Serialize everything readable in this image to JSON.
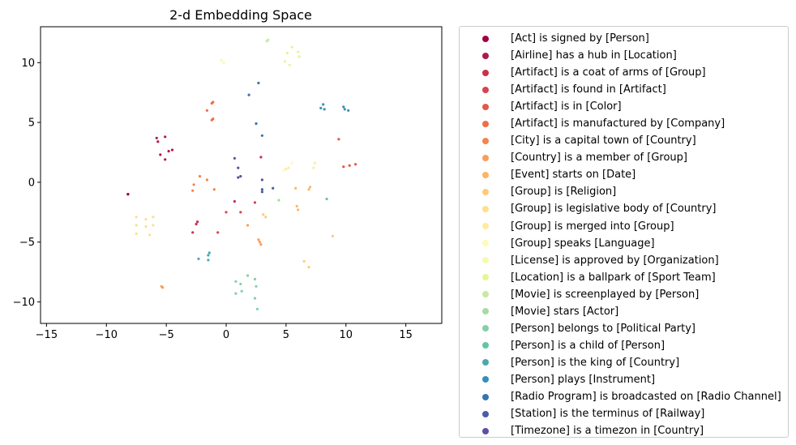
{
  "chart_data": {
    "type": "scatter",
    "title": "2-d Embedding Space",
    "xlabel": "",
    "ylabel": "",
    "xlim": [
      -15.5,
      18
    ],
    "ylim": [
      -11.8,
      13
    ],
    "xticks": [
      -15,
      -10,
      -5,
      0,
      5,
      10,
      15
    ],
    "yticks": [
      -10,
      -5,
      0,
      5,
      10
    ],
    "grid": false,
    "legend_position": "outside-right",
    "series": [
      {
        "name": "[Act] is signed by [Person]",
        "color": "#9e0142",
        "points": [
          [
            -8.2,
            -1.0
          ],
          [
            -8.2,
            -1.0
          ]
        ]
      },
      {
        "name": "[Airline] has a hub in [Location]",
        "color": "#b01a48",
        "points": [
          [
            -5.8,
            3.7
          ],
          [
            -5.7,
            3.4
          ],
          [
            -5.1,
            3.8
          ],
          [
            -4.8,
            2.6
          ],
          [
            -4.5,
            2.7
          ],
          [
            -5.5,
            2.3
          ],
          [
            -5.1,
            1.9
          ]
        ]
      },
      {
        "name": "[Artifact] is a coat of arms of [Group]",
        "color": "#c9314b",
        "points": [
          [
            0.7,
            -1.6
          ],
          [
            2.9,
            2.1
          ],
          [
            -2.8,
            -4.2
          ],
          [
            -2.5,
            -3.5
          ],
          [
            -2.4,
            -3.3
          ]
        ]
      },
      {
        "name": "[Artifact] is found in [Artifact]",
        "color": "#d8434e",
        "points": [
          [
            0.0,
            -2.5
          ],
          [
            1.2,
            -2.5
          ],
          [
            2.4,
            -1.7
          ],
          [
            -0.7,
            -4.2
          ]
        ]
      },
      {
        "name": "[Artifact] is in [Color]",
        "color": "#e3584c",
        "points": [
          [
            9.4,
            3.6
          ],
          [
            9.8,
            1.3
          ],
          [
            10.3,
            1.4
          ],
          [
            10.8,
            1.5
          ]
        ]
      },
      {
        "name": "[Artifact] is manufactured by [Company]",
        "color": "#ef6d46",
        "points": [
          [
            -1.2,
            6.6
          ],
          [
            -1.1,
            6.7
          ],
          [
            -1.6,
            6.0
          ],
          [
            -1.1,
            5.3
          ],
          [
            -1.2,
            5.2
          ]
        ]
      },
      {
        "name": "[City] is a capital town of [Country]",
        "color": "#f6834f",
        "points": [
          [
            -2.2,
            0.5
          ],
          [
            -1.6,
            0.2
          ],
          [
            -1.0,
            -0.6
          ],
          [
            -2.7,
            -0.2
          ],
          [
            -2.8,
            -0.7
          ]
        ]
      },
      {
        "name": "[Country] is a member of [Group]",
        "color": "#f99d59",
        "points": [
          [
            1.8,
            -3.6
          ],
          [
            2.7,
            -4.8
          ],
          [
            2.9,
            -5.2
          ],
          [
            2.8,
            -5.0
          ],
          [
            -5.4,
            -8.7
          ],
          [
            -5.3,
            -8.8
          ]
        ]
      },
      {
        "name": "[Event] starts on [Date]",
        "color": "#fdb566",
        "points": [
          [
            5.8,
            -0.5
          ],
          [
            6.9,
            -0.6
          ],
          [
            7.0,
            -0.4
          ],
          [
            5.9,
            -2.0
          ],
          [
            6.0,
            -2.3
          ]
        ]
      },
      {
        "name": "[Group] is [Religion]",
        "color": "#fdcb79",
        "points": [
          [
            3.1,
            -2.7
          ],
          [
            3.3,
            -2.9
          ],
          [
            8.9,
            -4.5
          ],
          [
            6.5,
            -6.6
          ],
          [
            6.9,
            -7.1
          ]
        ]
      },
      {
        "name": "[Group] is legislative body of [Country]",
        "color": "#fee08b",
        "points": [
          [
            -7.5,
            -2.9
          ],
          [
            -7.5,
            -3.6
          ],
          [
            -6.7,
            -3.1
          ],
          [
            -6.7,
            -3.7
          ],
          [
            -6.1,
            -2.9
          ],
          [
            -6.1,
            -3.6
          ],
          [
            -7.5,
            -4.3
          ],
          [
            -6.4,
            -4.4
          ]
        ]
      },
      {
        "name": "[Group] is merged into [Group]",
        "color": "#feec9f",
        "points": [
          [
            5.0,
            1.1
          ],
          [
            5.2,
            1.2
          ],
          [
            7.3,
            1.2
          ],
          [
            7.4,
            1.6
          ]
        ]
      },
      {
        "name": "[Group] speaks [Language]",
        "color": "#fffbb8",
        "points": [
          [
            5.5,
            1.6
          ],
          [
            4.8,
            1.0
          ]
        ]
      },
      {
        "name": "[License] is approved by [Organization]",
        "color": "#f5faaf",
        "points": [
          [
            -0.4,
            10.2
          ],
          [
            -0.2,
            10.0
          ]
        ]
      },
      {
        "name": "[Location] is a ballpark of [Sport Team]",
        "color": "#e6f598",
        "points": [
          [
            5.5,
            11.3
          ],
          [
            5.1,
            10.8
          ],
          [
            6.0,
            10.9
          ],
          [
            6.1,
            10.5
          ],
          [
            4.9,
            10.1
          ],
          [
            5.3,
            9.8
          ]
        ]
      },
      {
        "name": "[Movie] is screenplayed by [Person]",
        "color": "#c7e9a0",
        "points": [
          [
            3.4,
            11.8
          ],
          [
            3.5,
            11.9
          ]
        ]
      },
      {
        "name": "[Movie] stars [Actor]",
        "color": "#a5dba4",
        "points": [
          [
            4.4,
            -1.5
          ]
        ]
      },
      {
        "name": "[Person] belongs to [Political Party]",
        "color": "#84cfa5",
        "points": [
          [
            0.8,
            -8.3
          ],
          [
            1.2,
            -8.5
          ],
          [
            1.8,
            -7.8
          ],
          [
            2.4,
            -8.1
          ],
          [
            2.5,
            -8.7
          ],
          [
            1.3,
            -9.1
          ],
          [
            0.8,
            -9.3
          ],
          [
            2.4,
            -9.7
          ],
          [
            2.6,
            -10.6
          ]
        ]
      },
      {
        "name": "[Person] is a child of [Person]",
        "color": "#65c4a5",
        "points": [
          [
            8.4,
            -1.4
          ]
        ]
      },
      {
        "name": "[Person] is the king of [Country]",
        "color": "#48a9b1",
        "points": [
          [
            -2.3,
            -6.4
          ],
          [
            -1.4,
            -5.9
          ],
          [
            -1.5,
            -6.1
          ],
          [
            -1.5,
            -6.5
          ]
        ]
      },
      {
        "name": "[Person] plays [Instrument]",
        "color": "#378eba",
        "points": [
          [
            7.9,
            6.2
          ],
          [
            8.1,
            6.5
          ],
          [
            8.2,
            6.1
          ],
          [
            9.8,
            6.3
          ],
          [
            9.9,
            6.1
          ],
          [
            10.2,
            6.0
          ]
        ]
      },
      {
        "name": "[Radio Program] is broadcasted on [Radio Channel]",
        "color": "#3874b2",
        "points": [
          [
            2.7,
            8.3
          ],
          [
            1.9,
            7.3
          ],
          [
            2.5,
            4.9
          ],
          [
            3.0,
            3.9
          ]
        ]
      },
      {
        "name": "[Station] is the terminus of [Railway]",
        "color": "#4a5da9",
        "points": [
          [
            3.9,
            -0.5
          ],
          [
            3.0,
            -0.6
          ],
          [
            3.0,
            -0.8
          ]
        ]
      },
      {
        "name": "[Timezone] is a timezon in [Country]",
        "color": "#5e4fa2",
        "points": [
          [
            0.7,
            2.0
          ],
          [
            1.0,
            1.2
          ],
          [
            1.0,
            0.4
          ],
          [
            1.2,
            0.5
          ],
          [
            3.0,
            0.2
          ]
        ]
      }
    ]
  }
}
